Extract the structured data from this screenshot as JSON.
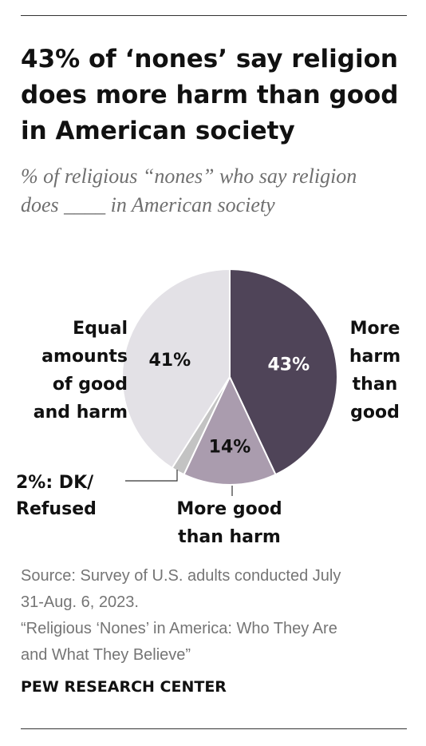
{
  "title": "43% of ‘nones’ say religion does more harm than good in American society",
  "subtitle": "% of religious “nones” who say religion does ____ in American society",
  "chart_data": {
    "type": "pie",
    "slices": [
      {
        "label": "More harm than good",
        "value": 43,
        "value_label": "43%",
        "color": "#4f4458",
        "text_color": "#ffffff"
      },
      {
        "label": "More good than harm",
        "value": 14,
        "value_label": "14%",
        "color": "#aa9cae",
        "text_color": "#111111"
      },
      {
        "label": "DK/ Refused",
        "value": 2,
        "value_label": "2%",
        "color": "#c3c3c3",
        "text_color": "#111111"
      },
      {
        "label": "Equal amounts of good and harm",
        "value": 41,
        "value_label": "41%",
        "color": "#e3e1e6",
        "text_color": "#111111"
      }
    ],
    "start": "12 o'clock, clockwise"
  },
  "labels": {
    "more_harm_lines": [
      "More",
      "harm",
      "than",
      "good"
    ],
    "more_good_lines": [
      "More good",
      "than harm"
    ],
    "equal_lines": [
      "Equal",
      "amounts",
      "of good",
      "and harm"
    ],
    "dk_lines": [
      "2%: DK/",
      "Refused"
    ]
  },
  "source": {
    "line1": "Source: Survey of U.S. adults conducted July",
    "line2": "31-Aug. 6, 2023.",
    "line3": "“Religious ‘Nones’ in America: Who They Are",
    "line4": "and What They Believe”"
  },
  "brand": "PEW RESEARCH CENTER"
}
